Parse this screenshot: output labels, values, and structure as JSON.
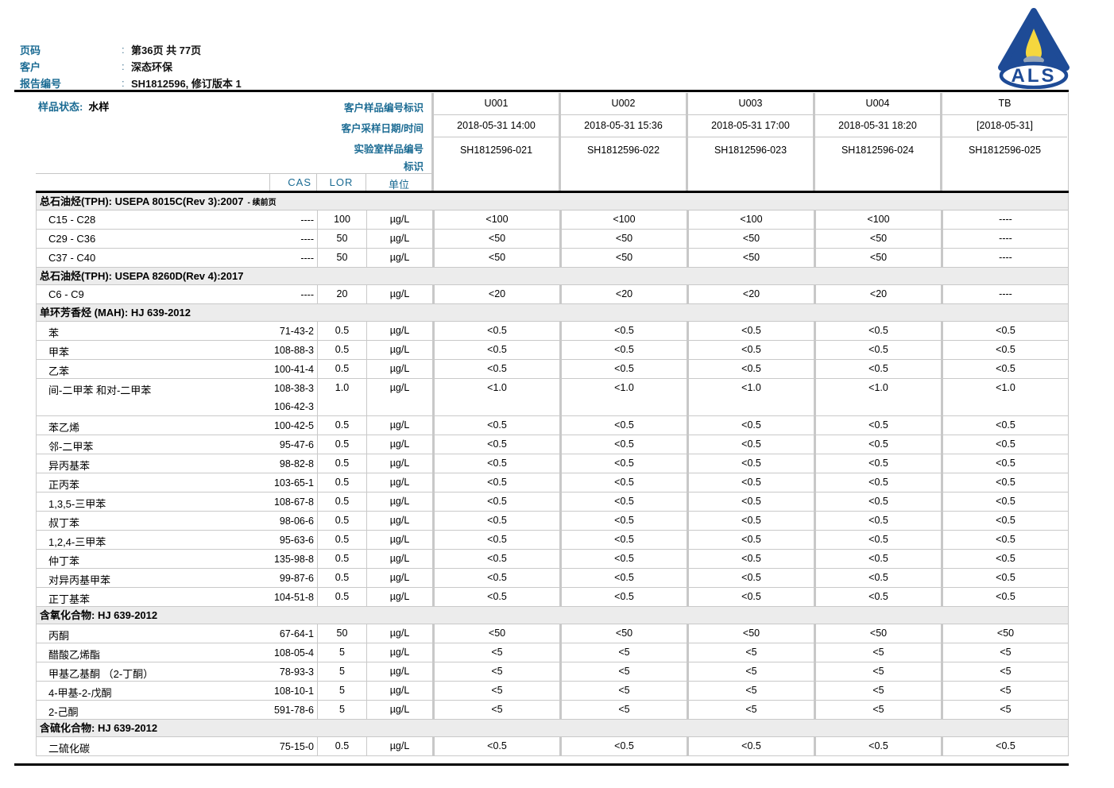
{
  "ui": {
    "colon": ":"
  },
  "colors": {
    "label_blue": "#1b6b93",
    "logo_blue": "#1e4b96",
    "flame_yellow": "#f5d73e",
    "section_gray": "#ececec"
  },
  "page_header": {
    "rows": [
      {
        "label": "页码",
        "value": "第36页 共 77页"
      },
      {
        "label": "客户",
        "value": "深态环保"
      },
      {
        "label": "报告编号",
        "value": "SH1812596, 修订版本 1"
      }
    ],
    "logo_text": "ALS"
  },
  "sample_header": {
    "status_label": "样品状态:",
    "status_value": "水样",
    "row_labels": [
      "客户样品编号标识",
      "客户采样日期/时间",
      "实验室样品编号",
      "标识"
    ],
    "col_headers": {
      "cas": "CAS",
      "lor": "LOR",
      "unit": "单位"
    },
    "columns": [
      {
        "id": "U001",
        "datetime": "2018-05-31 14:00",
        "lab_no": "SH1812596-021"
      },
      {
        "id": "U002",
        "datetime": "2018-05-31 15:36",
        "lab_no": "SH1812596-022"
      },
      {
        "id": "U003",
        "datetime": "2018-05-31 17:00",
        "lab_no": "SH1812596-023"
      },
      {
        "id": "U004",
        "datetime": "2018-05-31 18:20",
        "lab_no": "SH1812596-024"
      },
      {
        "id": "TB",
        "datetime": "[2018-05-31]",
        "lab_no": "SH1812596-025"
      }
    ]
  },
  "results_table": {
    "sections": [
      {
        "title": "总石油烃(TPH): USEPA 8015C(Rev 3):2007",
        "title_suffix": "- 续前页",
        "rows": [
          {
            "analyte": "C15 - C28",
            "cas": [
              "----"
            ],
            "lor": "100",
            "unit": "µg/L",
            "values": [
              "<100",
              "<100",
              "<100",
              "<100",
              "----"
            ]
          },
          {
            "analyte": "C29 - C36",
            "cas": [
              "----"
            ],
            "lor": "50",
            "unit": "µg/L",
            "values": [
              "<50",
              "<50",
              "<50",
              "<50",
              "----"
            ]
          },
          {
            "analyte": "C37 - C40",
            "cas": [
              "----"
            ],
            "lor": "50",
            "unit": "µg/L",
            "values": [
              "<50",
              "<50",
              "<50",
              "<50",
              "----"
            ]
          }
        ]
      },
      {
        "title": "总石油烃(TPH): USEPA 8260D(Rev 4):2017",
        "title_suffix": "",
        "rows": [
          {
            "analyte": "C6 - C9",
            "cas": [
              "----"
            ],
            "lor": "20",
            "unit": "µg/L",
            "values": [
              "<20",
              "<20",
              "<20",
              "<20",
              "----"
            ]
          }
        ]
      },
      {
        "title": "单环芳香烃 (MAH): HJ 639-2012",
        "title_suffix": "",
        "rows": [
          {
            "analyte": "苯",
            "cas": [
              "71-43-2"
            ],
            "lor": "0.5",
            "unit": "µg/L",
            "values": [
              "<0.5",
              "<0.5",
              "<0.5",
              "<0.5",
              "<0.5"
            ]
          },
          {
            "analyte": "甲苯",
            "cas": [
              "108-88-3"
            ],
            "lor": "0.5",
            "unit": "µg/L",
            "values": [
              "<0.5",
              "<0.5",
              "<0.5",
              "<0.5",
              "<0.5"
            ]
          },
          {
            "analyte": "乙苯",
            "cas": [
              "100-41-4"
            ],
            "lor": "0.5",
            "unit": "µg/L",
            "values": [
              "<0.5",
              "<0.5",
              "<0.5",
              "<0.5",
              "<0.5"
            ]
          },
          {
            "analyte": "间-二甲苯 和对-二甲苯",
            "cas": [
              "108-38-3",
              "106-42-3"
            ],
            "lor": "1.0",
            "unit": "µg/L",
            "values": [
              "<1.0",
              "<1.0",
              "<1.0",
              "<1.0",
              "<1.0"
            ]
          },
          {
            "analyte": "苯乙烯",
            "cas": [
              "100-42-5"
            ],
            "lor": "0.5",
            "unit": "µg/L",
            "values": [
              "<0.5",
              "<0.5",
              "<0.5",
              "<0.5",
              "<0.5"
            ]
          },
          {
            "analyte": "邻-二甲苯",
            "cas": [
              "95-47-6"
            ],
            "lor": "0.5",
            "unit": "µg/L",
            "values": [
              "<0.5",
              "<0.5",
              "<0.5",
              "<0.5",
              "<0.5"
            ]
          },
          {
            "analyte": "异丙基苯",
            "cas": [
              "98-82-8"
            ],
            "lor": "0.5",
            "unit": "µg/L",
            "values": [
              "<0.5",
              "<0.5",
              "<0.5",
              "<0.5",
              "<0.5"
            ]
          },
          {
            "analyte": "正丙苯",
            "cas": [
              "103-65-1"
            ],
            "lor": "0.5",
            "unit": "µg/L",
            "values": [
              "<0.5",
              "<0.5",
              "<0.5",
              "<0.5",
              "<0.5"
            ]
          },
          {
            "analyte": "1,3,5-三甲苯",
            "cas": [
              "108-67-8"
            ],
            "lor": "0.5",
            "unit": "µg/L",
            "values": [
              "<0.5",
              "<0.5",
              "<0.5",
              "<0.5",
              "<0.5"
            ]
          },
          {
            "analyte": "叔丁苯",
            "cas": [
              "98-06-6"
            ],
            "lor": "0.5",
            "unit": "µg/L",
            "values": [
              "<0.5",
              "<0.5",
              "<0.5",
              "<0.5",
              "<0.5"
            ]
          },
          {
            "analyte": "1,2,4-三甲苯",
            "cas": [
              "95-63-6"
            ],
            "lor": "0.5",
            "unit": "µg/L",
            "values": [
              "<0.5",
              "<0.5",
              "<0.5",
              "<0.5",
              "<0.5"
            ]
          },
          {
            "analyte": "仲丁苯",
            "cas": [
              "135-98-8"
            ],
            "lor": "0.5",
            "unit": "µg/L",
            "values": [
              "<0.5",
              "<0.5",
              "<0.5",
              "<0.5",
              "<0.5"
            ]
          },
          {
            "analyte": "对异丙基甲苯",
            "cas": [
              "99-87-6"
            ],
            "lor": "0.5",
            "unit": "µg/L",
            "values": [
              "<0.5",
              "<0.5",
              "<0.5",
              "<0.5",
              "<0.5"
            ]
          },
          {
            "analyte": "正丁基苯",
            "cas": [
              "104-51-8"
            ],
            "lor": "0.5",
            "unit": "µg/L",
            "values": [
              "<0.5",
              "<0.5",
              "<0.5",
              "<0.5",
              "<0.5"
            ]
          }
        ]
      },
      {
        "title": "含氧化合物: HJ 639-2012",
        "title_suffix": "",
        "rows": [
          {
            "analyte": "丙酮",
            "cas": [
              "67-64-1"
            ],
            "lor": "50",
            "unit": "µg/L",
            "values": [
              "<50",
              "<50",
              "<50",
              "<50",
              "<50"
            ]
          },
          {
            "analyte": "醋酸乙烯酯",
            "cas": [
              "108-05-4"
            ],
            "lor": "5",
            "unit": "µg/L",
            "values": [
              "<5",
              "<5",
              "<5",
              "<5",
              "<5"
            ]
          },
          {
            "analyte": "甲基乙基酮 （2-丁酮）",
            "cas": [
              "78-93-3"
            ],
            "lor": "5",
            "unit": "µg/L",
            "values": [
              "<5",
              "<5",
              "<5",
              "<5",
              "<5"
            ]
          },
          {
            "analyte": "4-甲基-2-戊酮",
            "cas": [
              "108-10-1"
            ],
            "lor": "5",
            "unit": "µg/L",
            "values": [
              "<5",
              "<5",
              "<5",
              "<5",
              "<5"
            ]
          },
          {
            "analyte": "2-己酮",
            "cas": [
              "591-78-6"
            ],
            "lor": "5",
            "unit": "µg/L",
            "values": [
              "<5",
              "<5",
              "<5",
              "<5",
              "<5"
            ]
          }
        ]
      },
      {
        "title": "含硫化合物: HJ 639-2012",
        "title_suffix": "",
        "rows": [
          {
            "analyte": "二硫化碳",
            "cas": [
              "75-15-0"
            ],
            "lor": "0.5",
            "unit": "µg/L",
            "values": [
              "<0.5",
              "<0.5",
              "<0.5",
              "<0.5",
              "<0.5"
            ]
          }
        ]
      }
    ]
  }
}
